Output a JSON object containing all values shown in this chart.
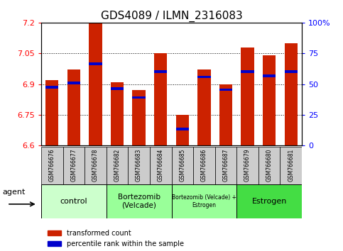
{
  "title": "GDS4089 / ILMN_2316083",
  "samples": [
    "GSM766676",
    "GSM766677",
    "GSM766678",
    "GSM766682",
    "GSM766683",
    "GSM766684",
    "GSM766685",
    "GSM766686",
    "GSM766687",
    "GSM766679",
    "GSM766680",
    "GSM766681"
  ],
  "bar_values": [
    6.92,
    6.97,
    7.2,
    6.91,
    6.87,
    7.05,
    6.75,
    6.97,
    6.9,
    7.08,
    7.04,
    7.1
  ],
  "percentile_values": [
    6.885,
    6.905,
    7.0,
    6.878,
    6.835,
    6.96,
    6.68,
    6.935,
    6.873,
    6.96,
    6.94,
    6.96
  ],
  "ymin": 6.6,
  "ymax": 7.2,
  "yticks": [
    6.6,
    6.75,
    6.9,
    7.05,
    7.2
  ],
  "ytick_labels": [
    "6.6",
    "6.75",
    "6.9",
    "7.05",
    "7.2"
  ],
  "right_yticks": [
    0,
    25,
    50,
    75,
    100
  ],
  "right_ytick_labels": [
    "0",
    "25",
    "50",
    "75",
    "100%"
  ],
  "bar_color": "#cc2200",
  "percentile_color": "#0000cc",
  "bar_width": 0.6,
  "group_info": [
    {
      "start": 0,
      "end": 2,
      "label": "control",
      "color": "#ccffcc",
      "fontsize": 8
    },
    {
      "start": 3,
      "end": 5,
      "label": "Bortezomib\n(Velcade)",
      "color": "#99ff99",
      "fontsize": 7.5
    },
    {
      "start": 6,
      "end": 8,
      "label": "Bortezomib (Velcade) +\nEstrogen",
      "color": "#99ff99",
      "fontsize": 5.5
    },
    {
      "start": 9,
      "end": 11,
      "label": "Estrogen",
      "color": "#44dd44",
      "fontsize": 8
    }
  ],
  "agent_label": "agent",
  "legend_red": "transformed count",
  "legend_blue": "percentile rank within the sample",
  "title_fontsize": 11,
  "tick_fontsize": 8,
  "sample_label_fontsize": 5.5,
  "gray_bg": "#cccccc"
}
